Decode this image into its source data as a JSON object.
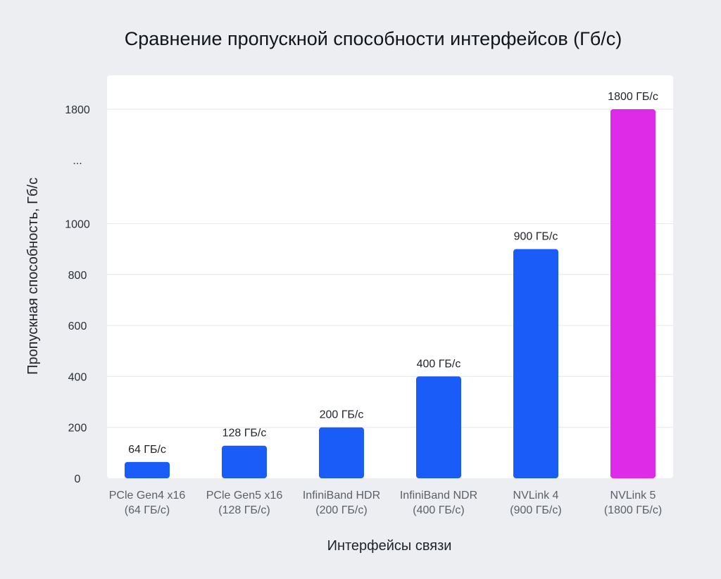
{
  "chart_data": {
    "type": "bar",
    "title": "Сравнение пропускной способности интерфейсов (Гб/с)",
    "xlabel": "Интерфейсы связи",
    "ylabel": "Пропускная способность, Гб/с",
    "axis_break": true,
    "y_ticks": [
      "0",
      "200",
      "400",
      "600",
      "800",
      "1000",
      "...",
      "1800"
    ],
    "grid": true,
    "categories": [
      [
        "PCle Gen4 x16",
        "(64 ГБ/с)"
      ],
      [
        "PCle Gen5 x16",
        "(128 ГБ/с)"
      ],
      [
        "InfiniBand HDR",
        "(200 ГБ/с)"
      ],
      [
        "InfiniBand NDR",
        "(400 ГБ/с)"
      ],
      [
        "NVLink 4",
        "(900 ГБ/с)"
      ],
      [
        "NVLink 5",
        "(1800 ГБ/с)"
      ]
    ],
    "values": [
      64,
      128,
      200,
      400,
      900,
      1800
    ],
    "data_labels": [
      "64 ГБ/с",
      "128 ГБ/с",
      "200 ГБ/с",
      "400 ГБ/с",
      "900 ГБ/с",
      "1800 ГБ/с"
    ],
    "colors": [
      "#1a5cf7",
      "#1a5cf7",
      "#1a5cf7",
      "#1a5cf7",
      "#1a5cf7",
      "#dd2be8"
    ]
  }
}
